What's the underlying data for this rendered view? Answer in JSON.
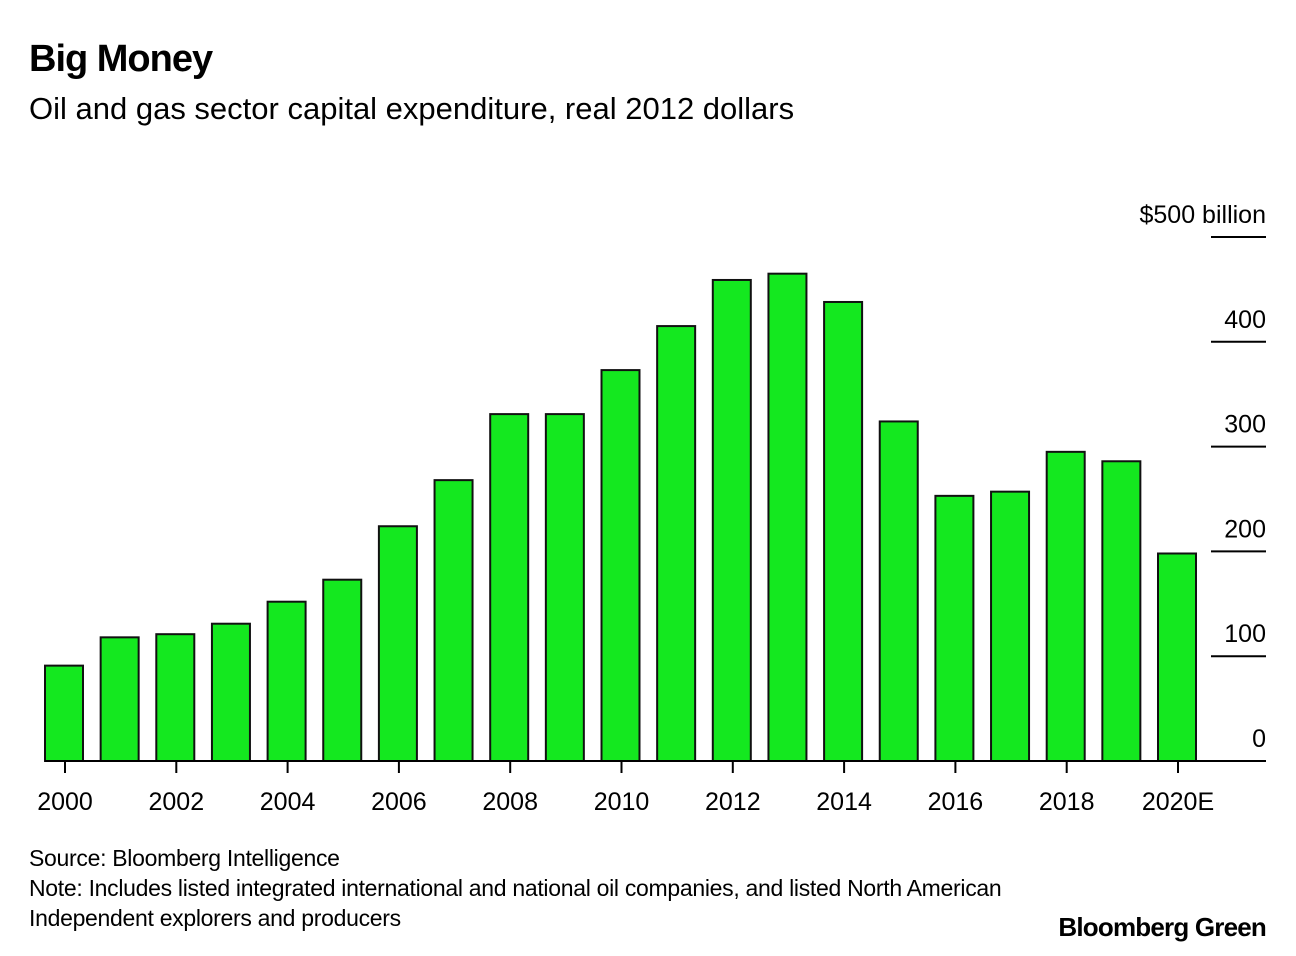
{
  "header": {
    "title": "Big Money",
    "subtitle": "Oil and gas sector capital expenditure, real 2012 dollars"
  },
  "footer": {
    "source": "Source: Bloomberg Intelligence",
    "note_line1": "Note: Includes listed integrated international and national oil companies, and listed North American",
    "note_line2": "Independent explorers and producers",
    "brand": "Bloomberg Green"
  },
  "colors": {
    "bar_fill": "#14e81f",
    "bar_stroke": "#111111",
    "axis": "#000000"
  },
  "chart_data": {
    "type": "bar",
    "title": "Big Money",
    "subtitle": "Oil and gas sector capital expenditure, real 2012 dollars",
    "xlabel": "",
    "ylabel": "$ billion",
    "y_unit_label": "$500 billion",
    "ylim": [
      0,
      500
    ],
    "yticks": [
      0,
      100,
      200,
      300,
      400,
      500
    ],
    "ytick_labels": [
      "0",
      "100",
      "200",
      "300",
      "400",
      "$500 billion"
    ],
    "y_axis_side": "right",
    "grid": false,
    "categories": [
      "2000",
      "2001",
      "2002",
      "2003",
      "2004",
      "2005",
      "2006",
      "2007",
      "2008",
      "2009",
      "2010",
      "2011",
      "2012",
      "2013",
      "2014",
      "2015",
      "2016",
      "2017",
      "2018",
      "2019",
      "2020E"
    ],
    "xtick_labels": [
      "2000",
      "2002",
      "2004",
      "2006",
      "2008",
      "2010",
      "2012",
      "2014",
      "2016",
      "2018",
      "2020E"
    ],
    "values": [
      91,
      118,
      121,
      131,
      152,
      173,
      224,
      268,
      331,
      331,
      373,
      415,
      459,
      465,
      438,
      324,
      253,
      257,
      295,
      286,
      198
    ]
  }
}
